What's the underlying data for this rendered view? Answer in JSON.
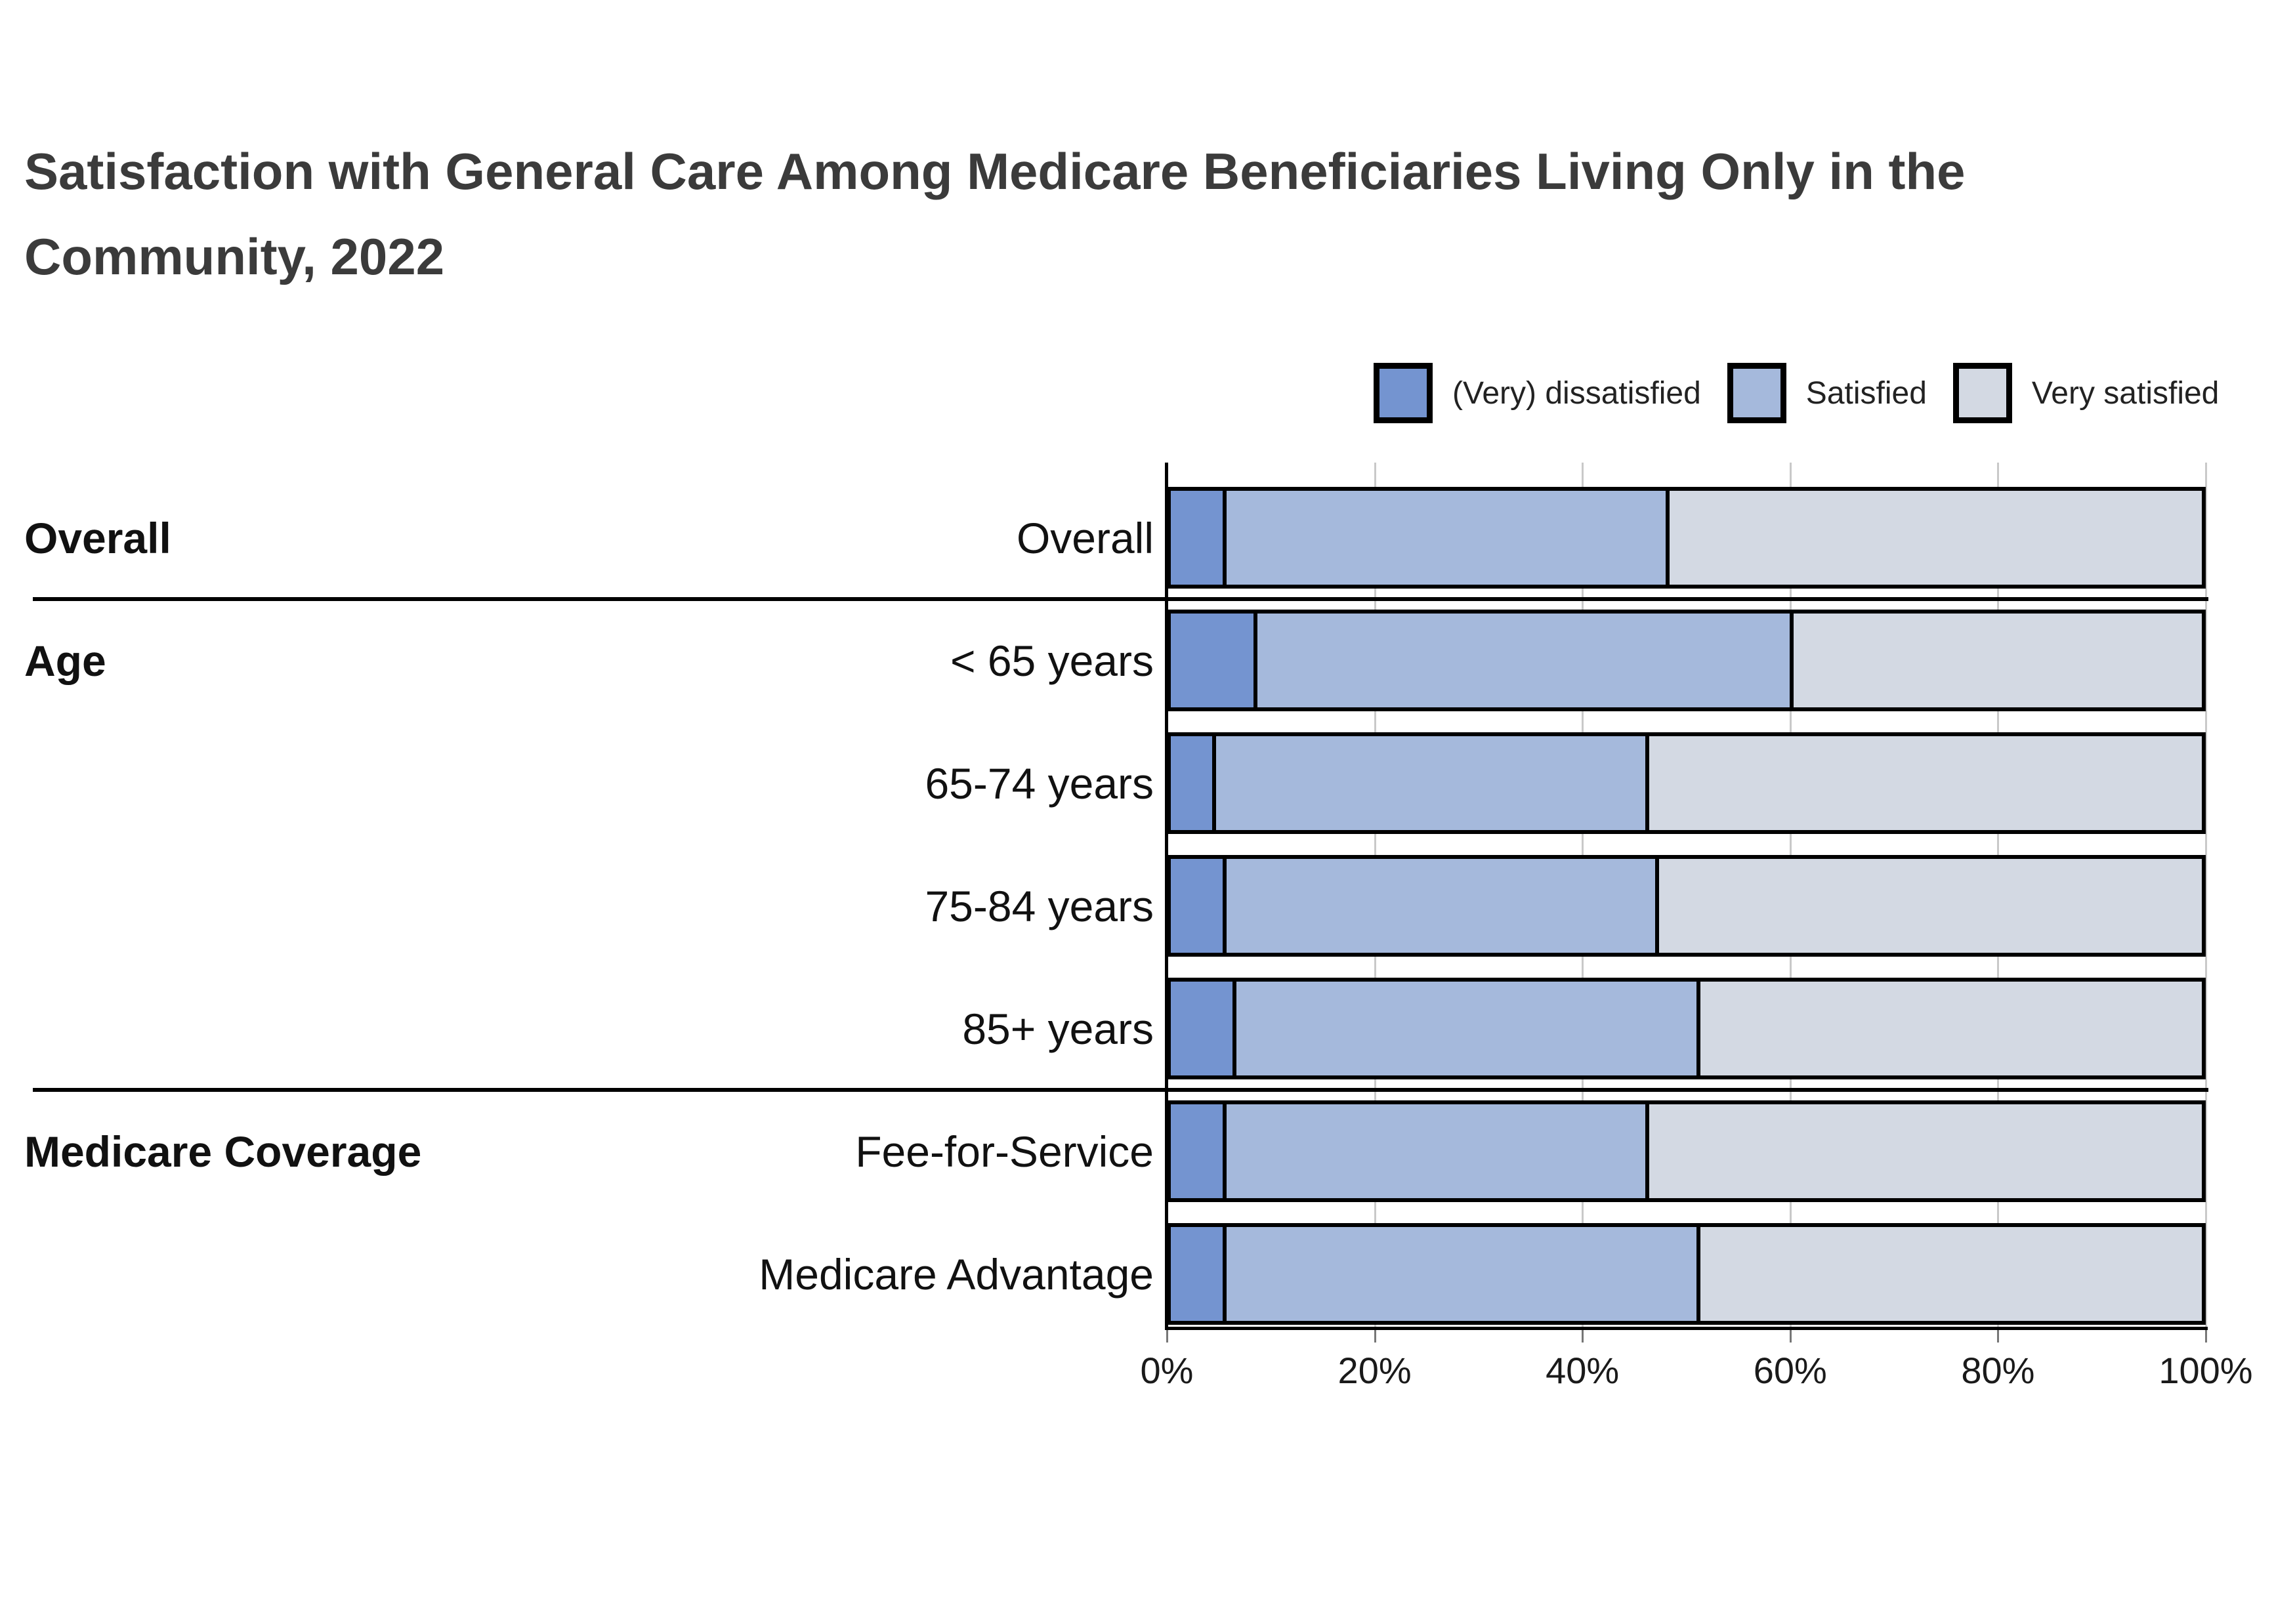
{
  "header": {
    "title": "Satisfaction with General Care Among Medicare Beneficiaries Living Only in the Community, 2022",
    "title_lines": [
      "Satisfaction with General Care Among Medicare Beneficiaries Living Only in the",
      "Community, 2022"
    ]
  },
  "colors": {
    "dissatisfied": "#7494d0",
    "satisfied": "#a5b9dc",
    "very_satisfied": "#d3d9e3",
    "bar_border": "#000000",
    "gridline": "#c9c9c9",
    "axis": "#000000",
    "title_text": "#3b3b3b",
    "label_text": "#111111"
  },
  "legend": {
    "items": [
      {
        "label": "(Very) dissatisfied",
        "color_key": "dissatisfied"
      },
      {
        "label": "Satisfied",
        "color_key": "satisfied"
      },
      {
        "label": "Very satisfied",
        "color_key": "very_satisfied"
      }
    ]
  },
  "chart_data": {
    "type": "bar",
    "orientation": "horizontal",
    "stacked": true,
    "title": "Satisfaction with General Care Among Medicare Beneficiaries Living Only in the Community, 2022",
    "categories": [
      "Overall",
      "< 65 years",
      "65-74 years",
      "75-84 years",
      "85+ years",
      "Fee-for-Service",
      "Medicare Advantage"
    ],
    "groups": [
      {
        "label": "Overall",
        "first_row": 0,
        "row_count": 1
      },
      {
        "label": "Age",
        "first_row": 1,
        "row_count": 4
      },
      {
        "label": "Medicare Coverage",
        "first_row": 5,
        "row_count": 2
      }
    ],
    "series": [
      {
        "name": "(Very) dissatisfied",
        "color_key": "dissatisfied",
        "values": [
          5,
          8,
          4,
          5,
          6,
          5,
          5
        ]
      },
      {
        "name": "Satisfied",
        "color_key": "satisfied",
        "values": [
          43,
          52,
          42,
          42,
          45,
          41,
          46
        ]
      },
      {
        "name": "Very satisfied",
        "color_key": "very_satisfied",
        "values": [
          52,
          40,
          54,
          53,
          49,
          54,
          49
        ]
      }
    ],
    "x_ticks": [
      "0%",
      "20%",
      "40%",
      "60%",
      "80%",
      "100%"
    ],
    "x_tick_values": [
      0,
      20,
      40,
      60,
      80,
      100
    ],
    "xlim": [
      0,
      100
    ],
    "xlabel": "",
    "ylabel": "",
    "grid": "vertical",
    "legend_position": "top-right"
  }
}
